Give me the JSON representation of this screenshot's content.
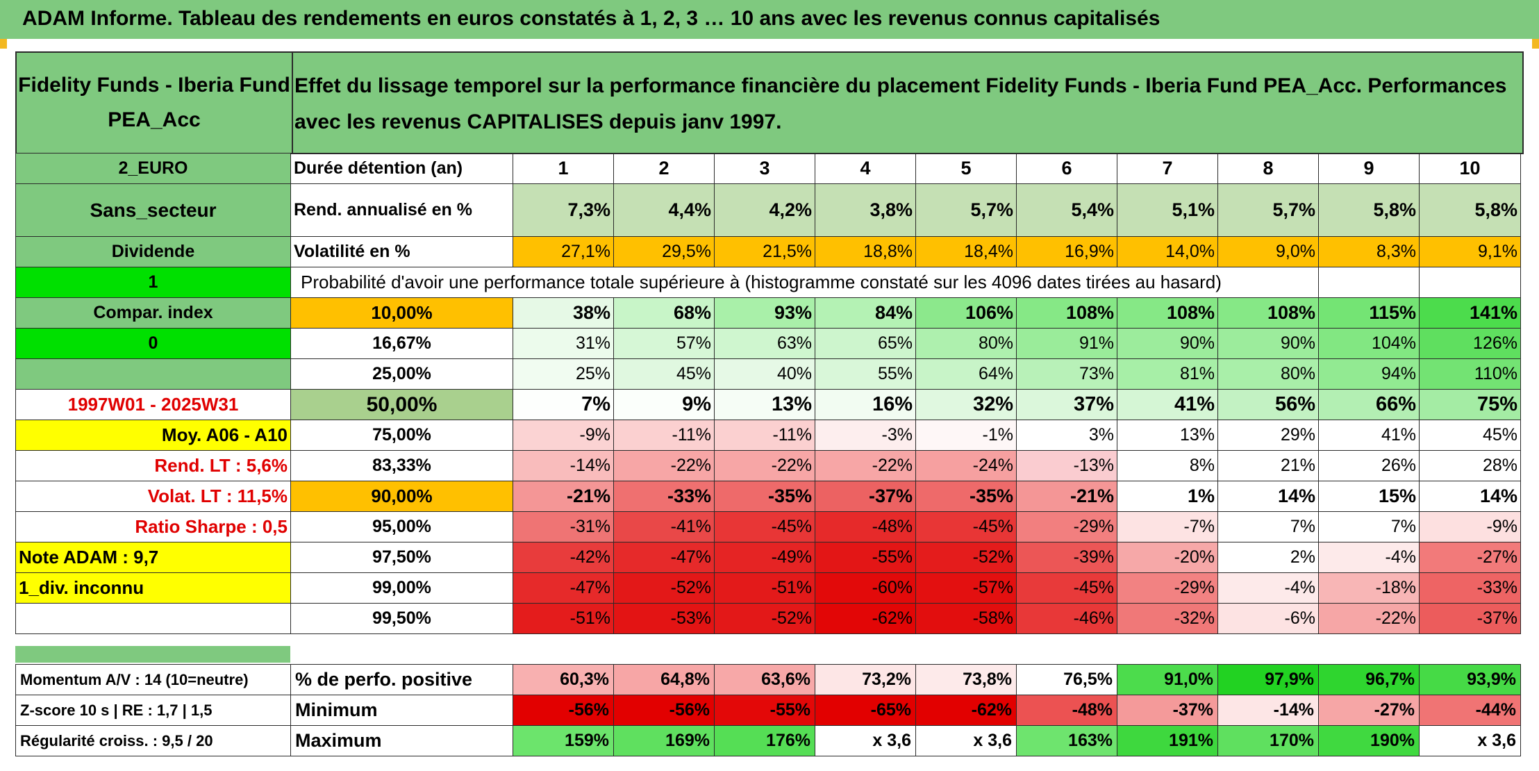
{
  "title": "ADAM Informe. Tableau des rendements en euros constatés à 1, 2, 3 … 10 ans avec les revenus connus capitalisés",
  "fund_name": "Fidelity Funds - Iberia Fund PEA_Acc",
  "description": "Effet du lissage temporel sur la performance financière du placement Fidelity Funds - Iberia Fund PEA_Acc. Performances avec les revenus CAPITALISES depuis janv 1997.",
  "left_labels": [
    "2_EURO",
    "Sans_secteur",
    "Dividende",
    "1",
    "Compar. index",
    "0",
    "",
    "1997W01 - 2025W31",
    "Moy. A06 - A10",
    "Rend. LT :   5,6%",
    "Volat. LT :   11,5%",
    "Ratio Sharpe :   0,5",
    "Note ADAM : 9,7",
    "1_div. inconnu",
    ""
  ],
  "duration_label": "Durée détention (an)",
  "years": [
    "1",
    "2",
    "3",
    "4",
    "5",
    "6",
    "7",
    "8",
    "9",
    "10"
  ],
  "rend_label": "Rend. annualisé en %",
  "rend_values": [
    "7,3%",
    "4,4%",
    "4,2%",
    "3,8%",
    "5,7%",
    "5,4%",
    "5,1%",
    "5,7%",
    "5,8%",
    "5,8%"
  ],
  "vol_label": "Volatilité en %",
  "vol_values": [
    "27,1%",
    "29,5%",
    "21,5%",
    "18,8%",
    "18,4%",
    "16,9%",
    "14,0%",
    "9,0%",
    "8,3%",
    "9,1%"
  ],
  "prob_label": "Probabilité d'avoir une performance totale supérieure à (histogramme constaté sur les 4096 dates tirées au hasard)",
  "prob_rows": [
    {
      "p": "10,00%",
      "v": [
        "38%",
        "68%",
        "93%",
        "84%",
        "106%",
        "108%",
        "108%",
        "108%",
        "115%",
        "141%"
      ]
    },
    {
      "p": "16,67%",
      "v": [
        "31%",
        "57%",
        "63%",
        "65%",
        "80%",
        "91%",
        "90%",
        "90%",
        "104%",
        "126%"
      ]
    },
    {
      "p": "25,00%",
      "v": [
        "25%",
        "45%",
        "40%",
        "55%",
        "64%",
        "73%",
        "81%",
        "80%",
        "94%",
        "110%"
      ]
    },
    {
      "p": "50,00%",
      "v": [
        "7%",
        "9%",
        "13%",
        "16%",
        "32%",
        "37%",
        "41%",
        "56%",
        "66%",
        "75%"
      ]
    },
    {
      "p": "75,00%",
      "v": [
        "-9%",
        "-11%",
        "-11%",
        "-3%",
        "-1%",
        "3%",
        "13%",
        "29%",
        "41%",
        "45%"
      ]
    },
    {
      "p": "83,33%",
      "v": [
        "-14%",
        "-22%",
        "-22%",
        "-22%",
        "-24%",
        "-13%",
        "8%",
        "21%",
        "26%",
        "28%"
      ]
    },
    {
      "p": "90,00%",
      "v": [
        "-21%",
        "-33%",
        "-35%",
        "-37%",
        "-35%",
        "-21%",
        "1%",
        "14%",
        "15%",
        "14%"
      ]
    },
    {
      "p": "95,00%",
      "v": [
        "-31%",
        "-41%",
        "-45%",
        "-48%",
        "-45%",
        "-29%",
        "-7%",
        "7%",
        "7%",
        "-9%"
      ]
    },
    {
      "p": "97,50%",
      "v": [
        "-42%",
        "-47%",
        "-49%",
        "-55%",
        "-52%",
        "-39%",
        "-20%",
        "2%",
        "-4%",
        "-27%"
      ]
    },
    {
      "p": "99,00%",
      "v": [
        "-47%",
        "-52%",
        "-51%",
        "-60%",
        "-57%",
        "-45%",
        "-29%",
        "-4%",
        "-18%",
        "-33%"
      ]
    },
    {
      "p": "99,50%",
      "v": [
        "-51%",
        "-53%",
        "-52%",
        "-62%",
        "-58%",
        "-46%",
        "-32%",
        "-6%",
        "-22%",
        "-37%"
      ]
    }
  ],
  "bottom": [
    {
      "label": "Momentum A/V : 14 (10=neutre)",
      "name": "% de perfo. positive",
      "v": [
        "60,3%",
        "64,8%",
        "63,6%",
        "73,2%",
        "73,8%",
        "76,5%",
        "91,0%",
        "97,9%",
        "96,7%",
        "93,9%"
      ]
    },
    {
      "label": "Z-score 10 s | RE : 1,7 | 1,5",
      "name": "Minimum",
      "v": [
        "-56%",
        "-56%",
        "-55%",
        "-65%",
        "-62%",
        "-48%",
        "-37%",
        "-14%",
        "-27%",
        "-44%"
      ]
    },
    {
      "label": "Régularité croiss. : 9,5 / 20",
      "name": "Maximum",
      "v": [
        "159%",
        "169%",
        "176%",
        "x 3,6",
        "x 3,6",
        "163%",
        "191%",
        "170%",
        "190%",
        "x 3,6"
      ]
    }
  ],
  "colors": {
    "header_green": "#7fc97f",
    "orange": "#ffc000",
    "yellow": "#ffff00",
    "bright_green": "#00e000",
    "red_text": "#e00000"
  }
}
